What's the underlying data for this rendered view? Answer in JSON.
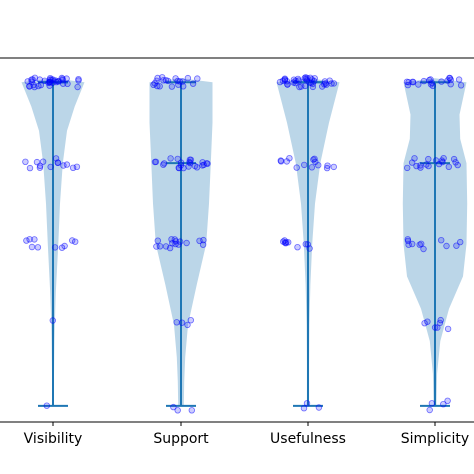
{
  "chart_data": {
    "type": "violin",
    "categories": [
      "Visibility",
      "Support",
      "Usefulness",
      "Simplicity"
    ],
    "ylim": [
      0.8,
      5.3
    ],
    "series": [
      {
        "category": "Visibility",
        "min": 1,
        "max": 5,
        "median": 5,
        "density": [
          [
            1.0,
            0.03
          ],
          [
            1.4,
            0.03
          ],
          [
            1.8,
            0.04
          ],
          [
            2.0,
            0.05
          ],
          [
            2.4,
            0.08
          ],
          [
            3.0,
            0.15
          ],
          [
            3.5,
            0.2
          ],
          [
            4.0,
            0.28
          ],
          [
            4.4,
            0.4
          ],
          [
            4.7,
            0.62
          ],
          [
            5.0,
            0.9
          ],
          [
            5.05,
            0.0
          ]
        ],
        "points": [
          5,
          5,
          5,
          5,
          5,
          5,
          5,
          5,
          5,
          5,
          5,
          5,
          5,
          5,
          5,
          5,
          5,
          5,
          5,
          5,
          5,
          5,
          5,
          5,
          5,
          5,
          5,
          5,
          5,
          5,
          5,
          5,
          5,
          5,
          5,
          5,
          4,
          4,
          4,
          4,
          4,
          4,
          4,
          4,
          4,
          4,
          4,
          4,
          4,
          4,
          3,
          3,
          3,
          3,
          3,
          3,
          3,
          3,
          3,
          3,
          2,
          1
        ]
      },
      {
        "category": "Support",
        "min": 1,
        "max": 5,
        "median": 4,
        "density": [
          [
            1.0,
            0.08
          ],
          [
            1.3,
            0.09
          ],
          [
            1.6,
            0.12
          ],
          [
            2.0,
            0.2
          ],
          [
            2.5,
            0.45
          ],
          [
            3.0,
            0.72
          ],
          [
            3.5,
            0.8
          ],
          [
            4.0,
            0.85
          ],
          [
            4.5,
            0.9
          ],
          [
            5.0,
            0.9
          ],
          [
            5.05,
            0.0
          ]
        ],
        "points": [
          5,
          5,
          5,
          5,
          5,
          5,
          5,
          5,
          5,
          5,
          5,
          5,
          5,
          5,
          5,
          5,
          5,
          5,
          5,
          5,
          4,
          4,
          4,
          4,
          4,
          4,
          4,
          4,
          4,
          4,
          4,
          4,
          4,
          4,
          4,
          4,
          4,
          4,
          4,
          4,
          4,
          4,
          4,
          3,
          3,
          3,
          3,
          3,
          3,
          3,
          3,
          3,
          3,
          3,
          3,
          3,
          3,
          3,
          3,
          2,
          2,
          2,
          2,
          1,
          1,
          1
        ]
      },
      {
        "category": "Usefulness",
        "min": 1,
        "max": 5,
        "median": 5,
        "density": [
          [
            1.0,
            0.03
          ],
          [
            1.5,
            0.03
          ],
          [
            2.0,
            0.04
          ],
          [
            2.5,
            0.07
          ],
          [
            3.0,
            0.12
          ],
          [
            3.5,
            0.2
          ],
          [
            4.0,
            0.35
          ],
          [
            4.5,
            0.6
          ],
          [
            5.0,
            0.9
          ],
          [
            5.05,
            0.0
          ]
        ],
        "points": [
          5,
          5,
          5,
          5,
          5,
          5,
          5,
          5,
          5,
          5,
          5,
          5,
          5,
          5,
          5,
          5,
          5,
          5,
          5,
          5,
          5,
          5,
          5,
          5,
          5,
          5,
          5,
          5,
          5,
          5,
          5,
          5,
          5,
          5,
          5,
          5,
          5,
          5,
          4,
          4,
          4,
          4,
          4,
          4,
          4,
          4,
          4,
          4,
          4,
          4,
          4,
          4,
          3,
          3,
          3,
          3,
          3,
          3,
          3,
          3,
          3,
          3,
          1,
          1,
          1
        ]
      },
      {
        "category": "Simplicity",
        "min": 1,
        "max": 5,
        "median": 4,
        "density": [
          [
            1.0,
            0.04
          ],
          [
            1.4,
            0.06
          ],
          [
            1.8,
            0.15
          ],
          [
            2.2,
            0.4
          ],
          [
            2.6,
            0.8
          ],
          [
            3.0,
            0.9
          ],
          [
            3.5,
            0.92
          ],
          [
            4.0,
            0.9
          ],
          [
            4.3,
            0.72
          ],
          [
            4.6,
            0.7
          ],
          [
            5.0,
            0.9
          ],
          [
            5.05,
            0.0
          ]
        ],
        "points": [
          5,
          5,
          5,
          5,
          5,
          5,
          5,
          5,
          5,
          5,
          5,
          5,
          5,
          5,
          5,
          5,
          5,
          5,
          5,
          5,
          4,
          4,
          4,
          4,
          4,
          4,
          4,
          4,
          4,
          4,
          4,
          4,
          4,
          4,
          4,
          4,
          4,
          4,
          3,
          3,
          3,
          3,
          3,
          3,
          3,
          3,
          3,
          3,
          3,
          2,
          2,
          2,
          2,
          2,
          2,
          2,
          1,
          1,
          1,
          1
        ]
      }
    ],
    "colors": {
      "violin_fill": "#1f77b4",
      "violin_line": "#1f77b4",
      "points": "#0000ff",
      "axis": "#000000"
    },
    "grid": false,
    "legend": "none"
  }
}
